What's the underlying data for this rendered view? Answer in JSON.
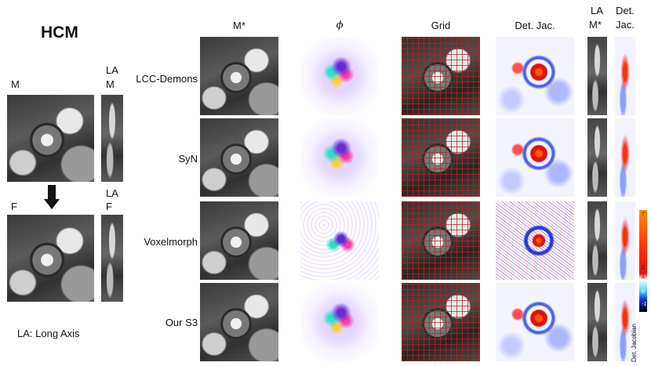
{
  "figure": {
    "title": "HCM",
    "moving_label": "M",
    "fixed_label": "F",
    "la_moving_label_1": "LA",
    "la_moving_label_2": "M",
    "la_fixed_label_1": "LA",
    "la_fixed_label_2": "F",
    "footnote": "LA: Long Axis",
    "columns": {
      "warped": "M*",
      "phi": "ϕ",
      "grid": "Grid",
      "det_jac": "Det. Jac.",
      "la_warped_1": "LA",
      "la_warped_2": "M*",
      "la_det_1": "Det.",
      "la_det_2": "Jac."
    },
    "rows": [
      "LCC-Demons",
      "SyN",
      "Voxelmorph",
      "Our S3"
    ],
    "colorbar": {
      "label": "Det. Jacobian",
      "ticks": [
        "7",
        "2",
        "1",
        "0",
        "-1"
      ]
    }
  }
}
